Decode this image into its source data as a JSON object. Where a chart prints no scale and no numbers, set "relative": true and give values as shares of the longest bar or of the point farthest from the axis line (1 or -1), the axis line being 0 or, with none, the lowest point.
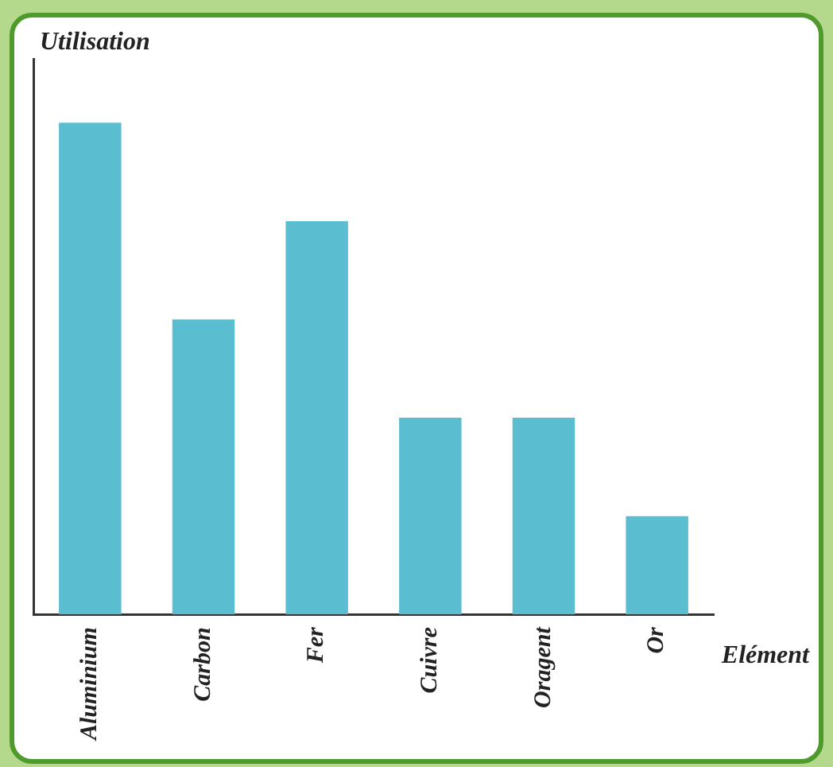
{
  "chart_data": {
    "type": "bar",
    "xlabel": "Elément",
    "ylabel": "Utilisation",
    "categories": [
      "Aluminium",
      "Carbon",
      "Fer",
      "Cuivre",
      "Oragent",
      "Or"
    ],
    "values": [
      1,
      0.6,
      0.8,
      0.4,
      0.4,
      0.2
    ],
    "color": "#5bbdd0",
    "relative": true
  }
}
